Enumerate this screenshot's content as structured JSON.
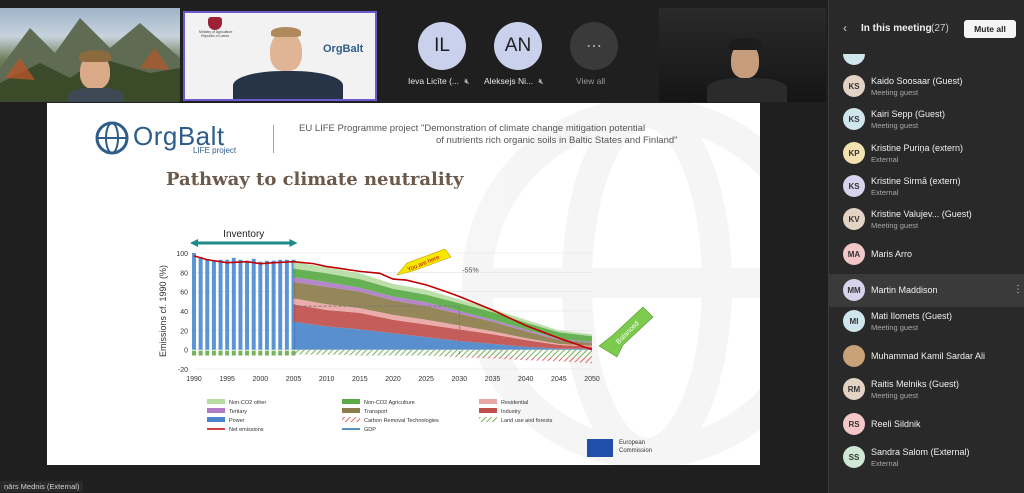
{
  "videos": {
    "participants": [
      {
        "initials": "IL",
        "name": "Ieva Licīte (...",
        "color": "#c9d1ec"
      },
      {
        "initials": "AN",
        "name": "Aleksejs Ni...",
        "color": "#c9d1ec"
      }
    ],
    "view_all_label": "View all",
    "view_all_icon": "more-horizontal-icon",
    "mic_icon": "mic-off-icon",
    "ministry_lines": [
      "Ministry of Agriculture",
      "Republic of Latvia"
    ],
    "bottom_name_tag": "ņārs Mednis (External)"
  },
  "slide": {
    "logo_text": "OrgBalt",
    "logo_sub": "LIFE project",
    "project_line1": "EU LIFE Programme project \"Demonstration of climate change mitigation potential",
    "project_line2": "of nutrients rich organic soils in Baltic States and Finland\"",
    "title": "Pathway to climate neutrality",
    "inventory_label": "Inventory",
    "you_are_here": "You are here",
    "balanced": "Balanced",
    "minus55": "-55%",
    "eu_label_line1": "European",
    "eu_label_line2": "Commission"
  },
  "chart_data": {
    "type": "area",
    "ylabel": "Emissions cf. 1990 (%)",
    "ylim": [
      -20,
      100
    ],
    "yticks": [
      -20,
      0,
      20,
      40,
      60,
      80,
      100
    ],
    "xticks": [
      1990,
      1995,
      2000,
      2005,
      2010,
      2015,
      2020,
      2025,
      2030,
      2035,
      2040,
      2045,
      2050
    ],
    "xlim": [
      1990,
      2050
    ],
    "grid": true,
    "inventory_bars": {
      "years": [
        1990,
        1991,
        1992,
        1993,
        1994,
        1995,
        1996,
        1997,
        1998,
        1999,
        2000,
        2001,
        2002,
        2003,
        2004,
        2005
      ],
      "values": [
        100,
        96,
        94,
        92,
        93,
        93,
        95,
        93,
        92,
        94,
        91,
        92,
        92,
        93,
        93,
        93
      ],
      "negative": [
        -5,
        -5,
        -5,
        -5,
        -5,
        -5,
        -5,
        -5,
        -5,
        -5,
        -5,
        -5,
        -5,
        -5,
        -5,
        -5
      ]
    },
    "net_emissions": {
      "x": [
        1990,
        1992,
        1995,
        1998,
        2000,
        2002,
        2005,
        2008,
        2010,
        2012,
        2015,
        2018,
        2020,
        2022,
        2025,
        2028,
        2030,
        2035,
        2040,
        2045,
        2050
      ],
      "y": [
        97,
        93,
        90,
        91,
        89,
        90,
        91,
        89,
        86,
        84,
        81,
        79,
        73,
        72,
        67,
        60,
        55,
        41,
        25,
        12,
        0
      ]
    },
    "stacked_areas": {
      "x": [
        2005,
        2010,
        2015,
        2020,
        2025,
        2030,
        2035,
        2040,
        2045,
        2050
      ],
      "series": [
        {
          "name": "Power",
          "color": "#4a86c8",
          "values": [
            29,
            24,
            21,
            17,
            13,
            9,
            6,
            3,
            1,
            1
          ]
        },
        {
          "name": "Industry",
          "color": "#c0504d",
          "values": [
            18,
            17,
            17,
            14,
            13,
            12,
            10,
            7,
            4,
            2
          ]
        },
        {
          "name": "Residential",
          "color": "#e9a6a4",
          "values": [
            6,
            6,
            5,
            5,
            5,
            4,
            3,
            2,
            1,
            1
          ]
        },
        {
          "name": "Transport",
          "color": "#8c7d4b",
          "values": [
            17,
            18,
            17,
            15,
            14,
            12,
            10,
            7,
            4,
            3
          ]
        },
        {
          "name": "Tertiary",
          "color": "#b07cc6",
          "values": [
            5,
            5,
            4,
            4,
            4,
            3,
            2,
            2,
            1,
            1
          ]
        },
        {
          "name": "Non-CO2 Agriculture",
          "color": "#5aaa46",
          "values": [
            9,
            9,
            9,
            8,
            8,
            8,
            8,
            7,
            7,
            6
          ]
        },
        {
          "name": "Non-CO2 other",
          "color": "#b7dca3",
          "values": [
            7,
            6,
            6,
            5,
            5,
            4,
            3,
            3,
            2,
            2
          ]
        }
      ],
      "negative": {
        "name": "Land use and forests",
        "values": [
          -5,
          -5,
          -6,
          -6,
          -6,
          -7,
          -7,
          -8,
          -8,
          -8
        ]
      },
      "carbon_removal": {
        "name": "Carbon Removal Technologies",
        "values": [
          0,
          0,
          0,
          0,
          0,
          -1,
          -2,
          -3,
          -4,
          -6
        ]
      }
    },
    "legend": [
      {
        "label": "Non-CO2 other",
        "color": "#b7dca3",
        "style": "box"
      },
      {
        "label": "Non-CO2 Agriculture",
        "color": "#5aaa46",
        "style": "box"
      },
      {
        "label": "Residential",
        "color": "#e9a6a4",
        "style": "box"
      },
      {
        "label": "Tertiary",
        "color": "#b07cc6",
        "style": "box"
      },
      {
        "label": "Transport",
        "color": "#8c7d4b",
        "style": "box"
      },
      {
        "label": "Industry",
        "color": "#c0504d",
        "style": "box"
      },
      {
        "label": "Power",
        "color": "#4a86c8",
        "style": "box"
      },
      {
        "label": "Carbon Removal Technologies",
        "color": "#e06666",
        "style": "hatch"
      },
      {
        "label": "Land use and forests",
        "color": "#76b35a",
        "style": "hatch"
      },
      {
        "label": "Net emissions",
        "color": "#c00000",
        "style": "line"
      },
      {
        "label": "GDP",
        "color": "#1f6fa8",
        "style": "line"
      }
    ]
  },
  "panel": {
    "title": "In this meeting",
    "count": "(27)",
    "mute_all": "Mute all",
    "back_icon": "chevron-left-icon",
    "more_icon": "more-vertical-icon",
    "people": [
      {
        "initials": "KS",
        "name": "Kaido Soosaar (Guest)",
        "sub": "Meeting guest",
        "color": "#e3d3c4"
      },
      {
        "initials": "KS",
        "name": "Kairi Sepp (Guest)",
        "sub": "Meeting guest",
        "color": "#cfe7ec"
      },
      {
        "initials": "KP",
        "name": "Kristine Puriņa (extern)",
        "sub": "External",
        "color": "#f3e1b0"
      },
      {
        "initials": "KS",
        "name": "Kristine Sirmā (extern)",
        "sub": "External",
        "color": "#d9d4ee"
      },
      {
        "initials": "KV",
        "name": "Kristine Valujev... (Guest)",
        "sub": "Meeting guest",
        "color": "#e3d3c4"
      },
      {
        "initials": "MA",
        "name": "Maris Arro",
        "sub": "",
        "color": "#f3c7c7"
      },
      {
        "initials": "MM",
        "name": "Martin Maddison",
        "sub": "",
        "color": "#d9d4ee"
      },
      {
        "initials": "MI",
        "name": "Mati Ilomets (Guest)",
        "sub": "Meeting guest",
        "color": "#cfe7ec"
      },
      {
        "initials": "",
        "name": "Muhammad Kamil Sardar Ali",
        "sub": "",
        "color": "#c9a178"
      },
      {
        "initials": "RM",
        "name": "Raitis Melniks (Guest)",
        "sub": "Meeting guest",
        "color": "#e3d3c4"
      },
      {
        "initials": "RS",
        "name": "Reeli Sildnik",
        "sub": "",
        "color": "#f3c7c7"
      },
      {
        "initials": "SS",
        "name": "Sandra Salom (External)",
        "sub": "External",
        "color": "#cfe7d5"
      }
    ]
  }
}
